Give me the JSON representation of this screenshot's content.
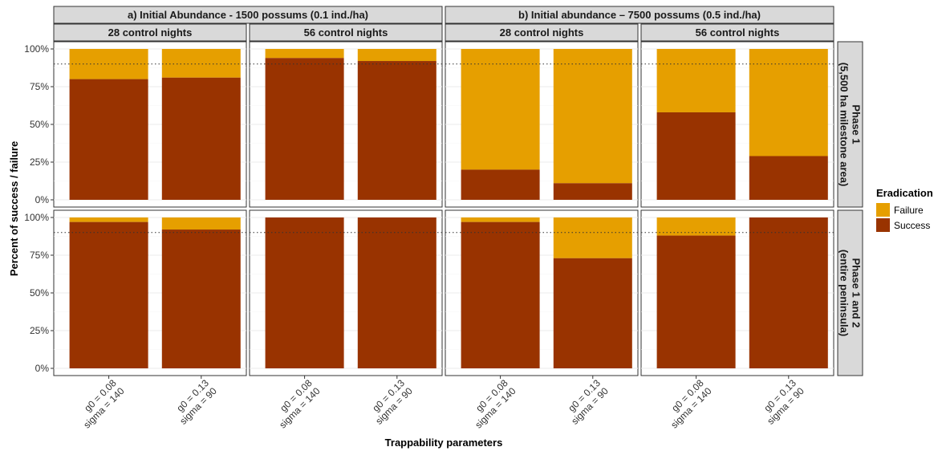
{
  "chart_data": {
    "type": "bar",
    "stacked": true,
    "xlabel": "Trappability parameters",
    "ylabel": "Percent of success / failure",
    "y_ticks": [
      "0%",
      "25%",
      "50%",
      "75%",
      "100%"
    ],
    "ylim": [
      0,
      100
    ],
    "reference_line": 90,
    "categories": [
      {
        "line1": "g0 = 0.08",
        "line2": "sigma = 140"
      },
      {
        "line1": "g0 = 0.13",
        "line2": "sigma = 90"
      }
    ],
    "legend": {
      "title": "Eradication",
      "position": "right",
      "items": [
        {
          "label": "Failure",
          "color": "#E69F00"
        },
        {
          "label": "Success",
          "color": "#993300"
        }
      ]
    },
    "column_groups": [
      {
        "label": "a) Initial Abundance - 1500 possums (0.1 ind./ha)",
        "columns": [
          "28 control nights",
          "56 control nights"
        ]
      },
      {
        "label": "b) Initial abundance – 7500 possums (0.5 ind./ha)",
        "columns": [
          "28 control nights",
          "56 control nights"
        ]
      }
    ],
    "rows": [
      {
        "line1": "Phase 1",
        "line2": "(5,500 ha milestone area)"
      },
      {
        "line1": "Phase 1 and 2",
        "line2": "(entire peninsula)"
      }
    ],
    "success_values": [
      [
        [
          80,
          81
        ],
        [
          94,
          92
        ],
        [
          20,
          11
        ],
        [
          58,
          29
        ]
      ],
      [
        [
          97,
          92
        ],
        [
          100,
          100
        ],
        [
          97,
          73
        ],
        [
          88,
          100
        ]
      ]
    ]
  }
}
